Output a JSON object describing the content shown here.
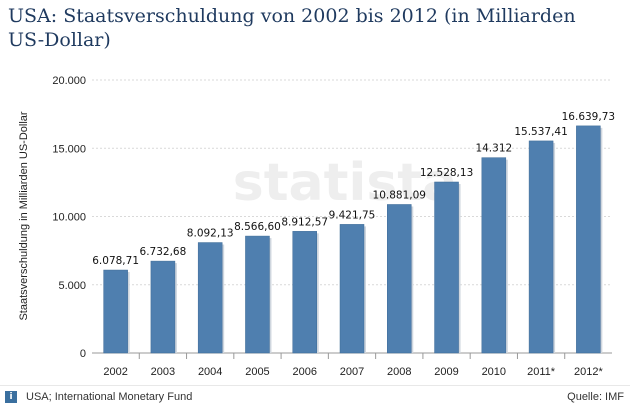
{
  "title": "USA: Staatsverschuldung von 2002 bis 2012 (in Milliarden US-Dollar)",
  "watermark": "statista",
  "footer": {
    "source_left": "USA; International Monetary Fund",
    "source_right": "Quelle: IMF"
  },
  "colors": {
    "bar": "#4f7faf",
    "bar_dark": "#3d6a96",
    "grid": "#d9d9d9",
    "title": "#1f3a5f"
  },
  "chart_data": {
    "type": "bar",
    "ylabel": "Staatsverschuldung in Milliarden US-Dollar",
    "xlabel": "",
    "ylim": [
      0,
      20000
    ],
    "yticks": [
      0,
      5000,
      10000,
      15000,
      20000
    ],
    "ytick_labels": [
      "0",
      "5.000",
      "10.000",
      "15.000",
      "20.000"
    ],
    "grid": true,
    "categories": [
      "2002",
      "2003",
      "2004",
      "2005",
      "2006",
      "2007",
      "2008",
      "2009",
      "2010",
      "2011*",
      "2012*"
    ],
    "values": [
      6078.71,
      6732.68,
      8092.13,
      8566.6,
      8912.57,
      9421.75,
      10881.09,
      12528.13,
      14312,
      15537.41,
      16639.73
    ],
    "value_labels": [
      "6.078,71",
      "6.732,68",
      "8.092,13",
      "8.566,60",
      "8.912,57",
      "9.421,75",
      "10.881,09",
      "12.528,13",
      "14.312",
      "15.537,41",
      "16.639,73"
    ]
  }
}
